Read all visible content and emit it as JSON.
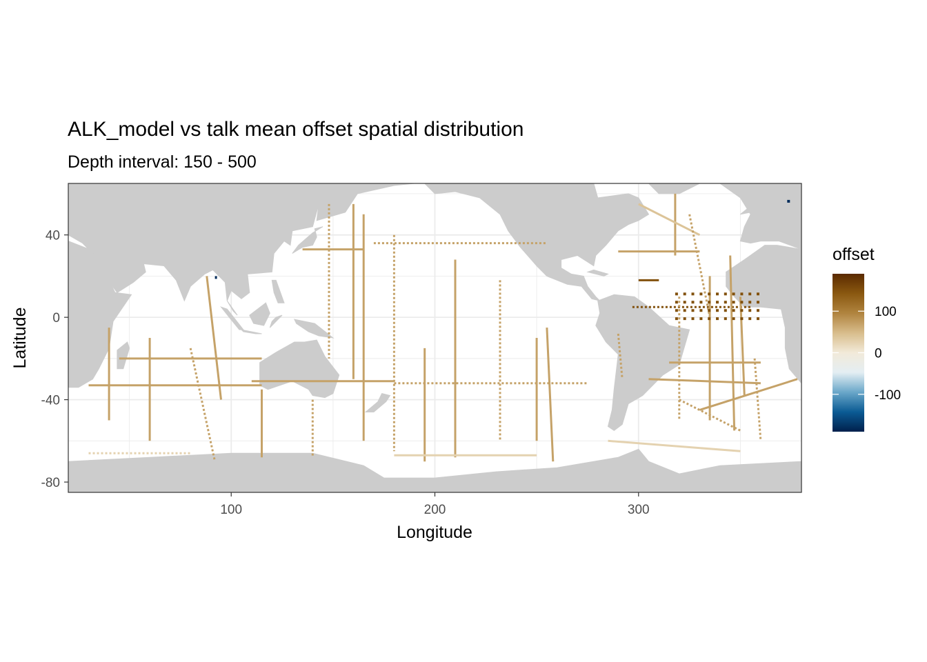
{
  "chart_data": {
    "type": "heatmap",
    "title": "ALK_model vs talk mean offset spatial distribution",
    "subtitle": "Depth interval: 150 - 500",
    "xlabel": "Longitude",
    "ylabel": "Latitude",
    "xlim": [
      20,
      380
    ],
    "ylim": [
      -85,
      65
    ],
    "x_ticks": [
      100,
      200,
      300
    ],
    "y_ticks": [
      40,
      0,
      -40,
      -80
    ],
    "grid": true,
    "legend": {
      "title": "offset",
      "position": "right",
      "range": [
        -190,
        190
      ],
      "ticks": [
        100,
        0,
        -100
      ],
      "colors": [
        "#00204c",
        "#0b5b94",
        "#6aa7c9",
        "#e4eef3",
        "#f2ead9",
        "#d8bd8c",
        "#b0843f",
        "#8a5810",
        "#5a2a00"
      ]
    },
    "land_color": "#cccccc",
    "ocean_color": "#ffffff",
    "panel_border_color": "#333333",
    "typical_offset": 70,
    "high_offset_region": "tropical Atlantic",
    "high_offset_value": 150,
    "min_offset_value": -180
  }
}
